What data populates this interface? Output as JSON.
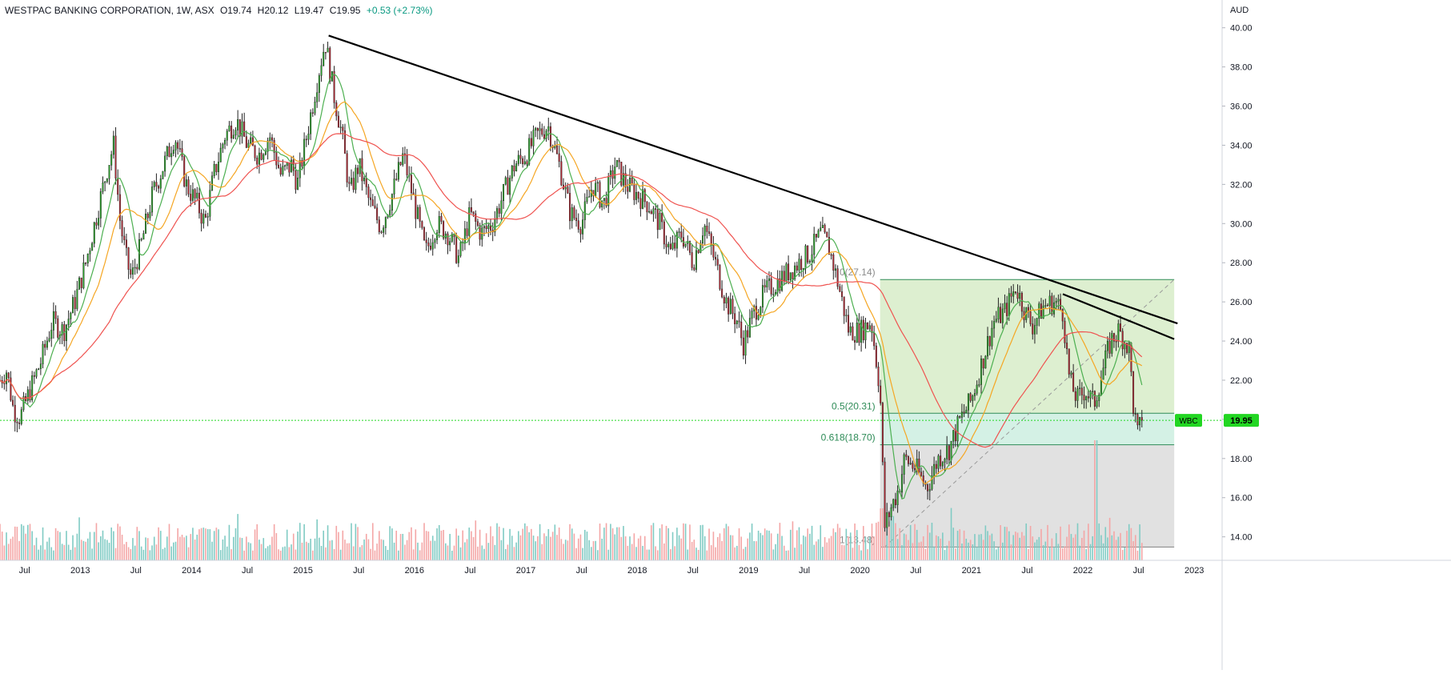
{
  "header": {
    "symbol": "WESTPAC BANKING CORPORATION, 1W, ASX",
    "open": "O19.74",
    "high": "H20.12",
    "low": "L19.47",
    "close": "C19.95",
    "change": "+0.53 (+2.73%)"
  },
  "chart_data": {
    "type": "candlestick",
    "currency": "AUD",
    "ylim": [
      12.8,
      40.6
    ],
    "price_ticks": [
      "40.00",
      "38.00",
      "36.00",
      "34.00",
      "32.00",
      "30.00",
      "28.00",
      "26.00",
      "24.00",
      "22.00",
      "20.00",
      "18.00",
      "16.00",
      "14.00"
    ],
    "time_labels": [
      "Jul",
      "2013",
      "Jul",
      "2014",
      "Jul",
      "2015",
      "Jul",
      "2016",
      "Jul",
      "2017",
      "Jul",
      "2018",
      "Jul",
      "2019",
      "Jul",
      "2020",
      "Jul",
      "2021",
      "Jul",
      "2022",
      "Jul",
      "2023"
    ],
    "time_label_dates": [
      2012.5,
      2013.0,
      2013.5,
      2014.0,
      2014.5,
      2015.0,
      2015.5,
      2016.0,
      2016.5,
      2017.0,
      2017.5,
      2018.0,
      2018.5,
      2019.0,
      2019.5,
      2020.0,
      2020.5,
      2021.0,
      2021.5,
      2022.0,
      2022.5,
      2023.0
    ],
    "xlim": [
      2012.28,
      2023.25
    ],
    "price_path": [
      [
        2012.28,
        22.0
      ],
      [
        2012.34,
        22.5
      ],
      [
        2012.4,
        20.5
      ],
      [
        2012.46,
        20.1
      ],
      [
        2012.55,
        21.5
      ],
      [
        2012.65,
        23.0
      ],
      [
        2012.75,
        25.0
      ],
      [
        2012.85,
        24.5
      ],
      [
        2012.95,
        26.0
      ],
      [
        2013.05,
        28.0
      ],
      [
        2013.15,
        30.5
      ],
      [
        2013.25,
        33.0
      ],
      [
        2013.3,
        34.0
      ],
      [
        2013.36,
        30.0
      ],
      [
        2013.42,
        28.0
      ],
      [
        2013.46,
        27.2
      ],
      [
        2013.55,
        29.0
      ],
      [
        2013.65,
        31.5
      ],
      [
        2013.75,
        33.0
      ],
      [
        2013.85,
        34.5
      ],
      [
        2013.95,
        32.0
      ],
      [
        2014.05,
        31.0
      ],
      [
        2014.12,
        30.0
      ],
      [
        2014.2,
        32.5
      ],
      [
        2014.3,
        34.5
      ],
      [
        2014.4,
        35.3
      ],
      [
        2014.5,
        34.0
      ],
      [
        2014.6,
        33.5
      ],
      [
        2014.7,
        34.5
      ],
      [
        2014.8,
        32.5
      ],
      [
        2014.9,
        33.0
      ],
      [
        2014.95,
        32.0
      ],
      [
        2015.05,
        35.0
      ],
      [
        2015.15,
        38.0
      ],
      [
        2015.2,
        39.3
      ],
      [
        2015.28,
        36.5
      ],
      [
        2015.35,
        34.5
      ],
      [
        2015.42,
        31.5
      ],
      [
        2015.5,
        33.0
      ],
      [
        2015.6,
        31.0
      ],
      [
        2015.7,
        29.8
      ],
      [
        2015.8,
        31.5
      ],
      [
        2015.9,
        33.5
      ],
      [
        2016.0,
        31.0
      ],
      [
        2016.1,
        28.5
      ],
      [
        2016.2,
        30.0
      ],
      [
        2016.3,
        29.5
      ],
      [
        2016.4,
        28.2
      ],
      [
        2016.5,
        30.5
      ],
      [
        2016.6,
        29.5
      ],
      [
        2016.7,
        30.0
      ],
      [
        2016.8,
        31.5
      ],
      [
        2016.9,
        33.0
      ],
      [
        2017.0,
        33.5
      ],
      [
        2017.1,
        34.5
      ],
      [
        2017.2,
        35.0
      ],
      [
        2017.3,
        33.0
      ],
      [
        2017.4,
        30.5
      ],
      [
        2017.5,
        30.0
      ],
      [
        2017.6,
        32.0
      ],
      [
        2017.7,
        31.0
      ],
      [
        2017.8,
        33.0
      ],
      [
        2017.9,
        32.0
      ],
      [
        2018.0,
        31.5
      ],
      [
        2018.1,
        31.0
      ],
      [
        2018.2,
        30.0
      ],
      [
        2018.3,
        28.5
      ],
      [
        2018.4,
        29.5
      ],
      [
        2018.5,
        28.0
      ],
      [
        2018.6,
        30.0
      ],
      [
        2018.7,
        28.0
      ],
      [
        2018.8,
        26.0
      ],
      [
        2018.9,
        25.0
      ],
      [
        2018.95,
        23.8
      ],
      [
        2019.05,
        25.5
      ],
      [
        2019.15,
        26.5
      ],
      [
        2019.25,
        27.0
      ],
      [
        2019.35,
        27.5
      ],
      [
        2019.45,
        28.0
      ],
      [
        2019.55,
        28.5
      ],
      [
        2019.65,
        29.5
      ],
      [
        2019.72,
        28.8
      ],
      [
        2019.8,
        27.0
      ],
      [
        2019.9,
        24.5
      ],
      [
        2020.0,
        24.5
      ],
      [
        2020.1,
        25.0
      ],
      [
        2020.18,
        21.5
      ],
      [
        2020.22,
        14.5
      ],
      [
        2020.28,
        15.5
      ],
      [
        2020.35,
        16.5
      ],
      [
        2020.4,
        18.0
      ],
      [
        2020.5,
        17.5
      ],
      [
        2020.6,
        16.5
      ],
      [
        2020.7,
        18.0
      ],
      [
        2020.8,
        18.5
      ],
      [
        2020.9,
        20.0
      ],
      [
        2021.0,
        21.0
      ],
      [
        2021.1,
        23.0
      ],
      [
        2021.2,
        25.0
      ],
      [
        2021.3,
        25.5
      ],
      [
        2021.4,
        26.8
      ],
      [
        2021.48,
        25.5
      ],
      [
        2021.55,
        24.8
      ],
      [
        2021.65,
        25.8
      ],
      [
        2021.75,
        26.0
      ],
      [
        2021.82,
        25.5
      ],
      [
        2021.88,
        22.0
      ],
      [
        2021.95,
        21.0
      ],
      [
        2022.02,
        21.5
      ],
      [
        2022.1,
        20.8
      ],
      [
        2022.18,
        22.5
      ],
      [
        2022.25,
        24.0
      ],
      [
        2022.32,
        24.5
      ],
      [
        2022.38,
        24.0
      ],
      [
        2022.42,
        23.5
      ],
      [
        2022.45,
        20.8
      ],
      [
        2022.49,
        19.2
      ],
      [
        2022.53,
        19.95
      ]
    ],
    "current_price": 19.95,
    "symbol_badge": "WBC",
    "price_badge": "19.95",
    "trendlines": [
      {
        "from": [
          2015.23,
          39.6
        ],
        "to": [
          2022.85,
          24.9
        ]
      },
      {
        "from": [
          2021.82,
          26.4
        ],
        "to": [
          2022.82,
          24.1
        ]
      }
    ],
    "fib": {
      "x0": 2020.18,
      "x1": 2022.82,
      "levels": [
        {
          "ratio": 0,
          "price": 27.14,
          "label": "0(27.14)"
        },
        {
          "ratio": 0.5,
          "price": 20.31,
          "label": "0.5(20.31)"
        },
        {
          "ratio": 0.618,
          "price": 18.7,
          "label": "0.618(18.70)"
        },
        {
          "ratio": 1,
          "price": 13.48,
          "label": "1(13.48)"
        }
      ],
      "diagonal": {
        "from": [
          2020.22,
          13.48
        ],
        "to": [
          2022.82,
          27.14
        ]
      }
    },
    "colors": {
      "up": "#26a69a",
      "down": "#b22833",
      "candle_up": "#2aa52a",
      "candle_down": "#b22833",
      "ma_fast": "#4caf50",
      "ma_mid": "#f5a623",
      "ma_slow": "#ef5350",
      "vol_up": "#80cbc4",
      "vol_down": "#f4a6a6",
      "fib_top": "#d7ecc8",
      "fib_mid": "#cdeee0",
      "fib_bottom": "#dcdcdc",
      "badge": "#22d622",
      "trend": "#000000"
    }
  }
}
